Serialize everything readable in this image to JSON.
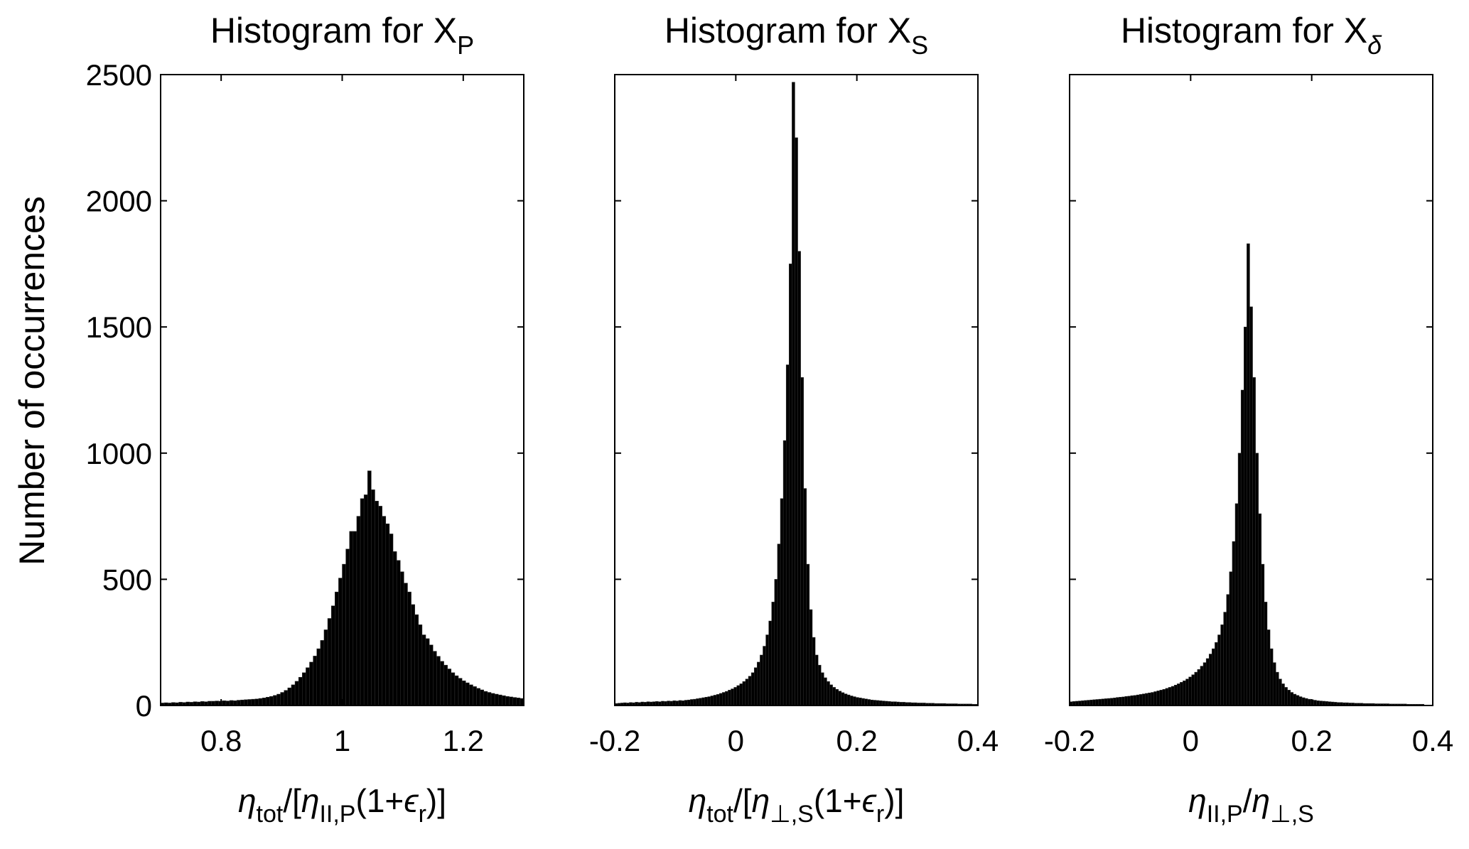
{
  "figure": {
    "ylabel": "Number of occurrences"
  },
  "chart_data": [
    {
      "type": "bar",
      "title": "Histogram for X",
      "title_sub": "P",
      "title_sub_italic": false,
      "xlabel_parts": [
        {
          "t": "η",
          "it": true
        },
        {
          "t": "tot",
          "sub": true
        },
        {
          "t": "/[",
          "it": false
        },
        {
          "t": "η",
          "it": true
        },
        {
          "t": "II,P",
          "sub": true
        },
        {
          "t": "(1+",
          "it": false
        },
        {
          "t": "ϵ",
          "it": true
        },
        {
          "t": "r",
          "sub": true
        },
        {
          "t": ")]",
          "it": false
        }
      ],
      "xlim": [
        0.7,
        1.3
      ],
      "ylim": [
        0,
        2500
      ],
      "xticks": [
        0.8,
        1,
        1.2
      ],
      "xtick_labels": [
        "0.8",
        "1",
        "1.2"
      ],
      "yticks": [
        0,
        500,
        1000,
        1500,
        2000,
        2500
      ],
      "ytick_labels": [
        "0",
        "500",
        "1000",
        "1500",
        "2000",
        "2500"
      ],
      "bin_start": 0.7,
      "bin_width": 0.006,
      "values": [
        10,
        11,
        10,
        12,
        11,
        13,
        12,
        14,
        13,
        15,
        14,
        16,
        15,
        17,
        17,
        18,
        17,
        19,
        18,
        20,
        19,
        21,
        22,
        23,
        24,
        25,
        26,
        28,
        30,
        33,
        36,
        40,
        45,
        52,
        60,
        70,
        82,
        96,
        112,
        130,
        150,
        172,
        196,
        225,
        258,
        300,
        345,
        395,
        450,
        505,
        560,
        620,
        690,
        690,
        750,
        820,
        835,
        930,
        855,
        810,
        790,
        750,
        720,
        680,
        610,
        575,
        530,
        485,
        450,
        400,
        360,
        320,
        280,
        265,
        240,
        215,
        195,
        175,
        160,
        145,
        130,
        118,
        108,
        98,
        90,
        82,
        75,
        68,
        62,
        56,
        52,
        48,
        45,
        42,
        39,
        36,
        34,
        32,
        30,
        28
      ]
    },
    {
      "type": "bar",
      "title": "Histogram for X",
      "title_sub": "S",
      "title_sub_italic": false,
      "xlabel_parts": [
        {
          "t": "η",
          "it": true
        },
        {
          "t": "tot",
          "sub": true
        },
        {
          "t": "/[",
          "it": false
        },
        {
          "t": "η",
          "it": true
        },
        {
          "t": "⊥,S",
          "sub": true
        },
        {
          "t": "(1+",
          "it": false
        },
        {
          "t": "ϵ",
          "it": true
        },
        {
          "t": "r",
          "sub": true
        },
        {
          "t": ")]",
          "it": false
        }
      ],
      "xlim": [
        -0.2,
        0.4
      ],
      "ylim": [
        0,
        2500
      ],
      "xticks": [
        -0.2,
        0,
        0.2,
        0.4
      ],
      "xtick_labels": [
        "-0.2",
        "0",
        "0.2",
        "0.4"
      ],
      "yticks": [
        0,
        500,
        1000,
        1500,
        2000,
        2500
      ],
      "ytick_labels": [
        "",
        "",
        "",
        "",
        "",
        ""
      ],
      "bin_start": -0.2,
      "bin_width": 0.0048,
      "values": [
        8,
        9,
        10,
        11,
        10,
        12,
        11,
        13,
        12,
        14,
        13,
        15,
        14,
        15,
        16,
        15,
        17,
        16,
        18,
        17,
        19,
        18,
        20,
        19,
        21,
        22,
        24,
        25,
        27,
        29,
        31,
        33,
        35,
        38,
        41,
        44,
        48,
        52,
        56,
        61,
        66,
        72,
        79,
        86,
        95,
        105,
        116,
        130,
        150,
        172,
        200,
        235,
        280,
        335,
        410,
        500,
        640,
        820,
        1050,
        1350,
        1750,
        2470,
        2250,
        1800,
        1300,
        860,
        560,
        380,
        270,
        200,
        160,
        130,
        110,
        95,
        82,
        72,
        64,
        57,
        51,
        46,
        42,
        38,
        35,
        32,
        30,
        28,
        26,
        24,
        22,
        21,
        20,
        19,
        18,
        17,
        16,
        15,
        15,
        14,
        13,
        13,
        12,
        12,
        11,
        11,
        10,
        10,
        10,
        9,
        9,
        9,
        8,
        8,
        8,
        8,
        7,
        7,
        7,
        7,
        6,
        6,
        6,
        6,
        6,
        5,
        5
      ]
    },
    {
      "type": "bar",
      "title": "Histogram for X",
      "title_sub": "δ",
      "title_sub_italic": true,
      "xlabel_parts": [
        {
          "t": "η",
          "it": true
        },
        {
          "t": "II,P",
          "sub": true
        },
        {
          "t": "/",
          "it": false
        },
        {
          "t": "η",
          "it": true
        },
        {
          "t": "⊥,S",
          "sub": true
        }
      ],
      "xlim": [
        -0.2,
        0.4
      ],
      "ylim": [
        0,
        2500
      ],
      "xticks": [
        -0.2,
        0,
        0.2,
        0.4
      ],
      "xtick_labels": [
        "-0.2",
        "0",
        "0.2",
        "0.4"
      ],
      "yticks": [
        0,
        500,
        1000,
        1500,
        2000,
        2500
      ],
      "ytick_labels": [
        "",
        "",
        "",
        "",
        "",
        ""
      ],
      "bin_start": -0.2,
      "bin_width": 0.0048,
      "values": [
        15,
        16,
        17,
        18,
        19,
        20,
        21,
        22,
        23,
        24,
        25,
        26,
        27,
        28,
        29,
        30,
        32,
        33,
        34,
        36,
        37,
        39,
        40,
        42,
        44,
        46,
        48,
        50,
        52,
        55,
        58,
        61,
        64,
        68,
        72,
        76,
        81,
        86,
        92,
        98,
        105,
        113,
        122,
        132,
        143,
        156,
        170,
        186,
        204,
        225,
        250,
        280,
        320,
        370,
        440,
        530,
        650,
        800,
        1000,
        1250,
        1500,
        1830,
        1580,
        1300,
        1000,
        760,
        560,
        410,
        300,
        225,
        170,
        132,
        105,
        86,
        72,
        61,
        52,
        45,
        40,
        35,
        31,
        28,
        25,
        23,
        21,
        19,
        18,
        17,
        16,
        15,
        14,
        13,
        12,
        12,
        11,
        11,
        10,
        10,
        9,
        9,
        9,
        8,
        8,
        8,
        8,
        7,
        7,
        7,
        7,
        7,
        6,
        6,
        6,
        6,
        6,
        6,
        5,
        5,
        5,
        5,
        5,
        5
      ]
    }
  ]
}
